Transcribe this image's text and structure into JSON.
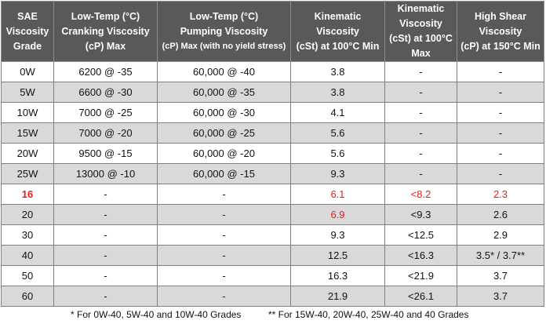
{
  "table": {
    "header": [
      [
        "SAE",
        "Viscosity",
        "Grade"
      ],
      [
        "Low-Temp (°C)",
        "Cranking Viscosity",
        "(cP) Max"
      ],
      [
        "Low-Temp (°C)",
        "Pumping Viscosity",
        "(cP) Max (with no yield stress)"
      ],
      [
        "Kinematic",
        "Viscosity",
        "(cSt) at 100°C Min"
      ],
      [
        "Kinematic",
        "Viscosity",
        "(cSt) at 100°C Max"
      ],
      [
        "High Shear",
        "Viscosity",
        "(cP) at 150°C Min"
      ]
    ],
    "rows": [
      [
        "0W",
        "6200 @ -35",
        "60,000 @ -40",
        "3.8",
        "-",
        "-"
      ],
      [
        "5W",
        "6600 @ -30",
        "60,000 @ -35",
        "3.8",
        "-",
        "-"
      ],
      [
        "10W",
        "7000 @ -25",
        "60,000 @ -30",
        "4.1",
        "-",
        "-"
      ],
      [
        "15W",
        "7000 @ -20",
        "60,000 @ -25",
        "5.6",
        "-",
        "-"
      ],
      [
        "20W",
        "9500 @ -15",
        "60,000 @ -20",
        "5.6",
        "-",
        "-"
      ],
      [
        "25W",
        "13000 @ -10",
        "60,000 @ -15",
        "9.3",
        "-",
        "-"
      ],
      [
        "16",
        "-",
        "-",
        "6.1",
        "<8.2",
        "2.3"
      ],
      [
        "20",
        "-",
        "-",
        "6.9",
        "<9.3",
        "2.6"
      ],
      [
        "30",
        "-",
        "-",
        "9.3",
        "<12.5",
        "2.9"
      ],
      [
        "40",
        "-",
        "-",
        "12.5",
        "<16.3",
        "3.5* / 3.7**"
      ],
      [
        "50",
        "-",
        "-",
        "16.3",
        "<21.9",
        "3.7"
      ],
      [
        "60",
        "-",
        "-",
        "21.9",
        "<26.1",
        "3.7"
      ]
    ]
  },
  "footnotes": [
    "* For 0W-40, 5W-40 and 10W-40 Grades",
    "** For 15W-40, 20W-40, 25W-40 and 40 Grades"
  ]
}
